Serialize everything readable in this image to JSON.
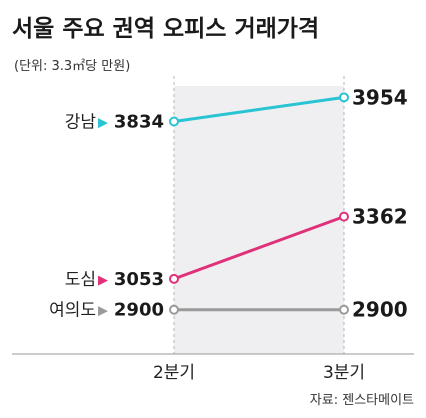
{
  "title": "서울 주요 권역 오피스 거래가격",
  "unit_note": "(단위: 3.3㎡당 만원)",
  "source": "자료: 젠스타메이트",
  "chart_data": {
    "type": "line",
    "title": "서울 주요 권역 오피스 거래가격",
    "subtitle": "(단위: 3.3㎡당 만원)",
    "xlabel": "",
    "ylabel": "",
    "x": [
      "2분기",
      "3분기"
    ],
    "ylim": [
      2700,
      4050
    ],
    "grid": false,
    "legend": "none",
    "series": [
      {
        "name": "강남",
        "values": [
          3834,
          3954
        ],
        "color": "#29c4d3",
        "marker": "▶",
        "marker_color": "#29c4d3"
      },
      {
        "name": "도심",
        "values": [
          3053,
          3362
        ],
        "color": "#e0307a",
        "marker": "▶",
        "marker_color": "#e0307a"
      },
      {
        "name": "여의도",
        "values": [
          2900,
          2900
        ],
        "color": "#9a9a9a",
        "marker": "▶",
        "marker_color": "#9a9a9a"
      }
    ],
    "source": "자료: 젠스타메이트"
  }
}
